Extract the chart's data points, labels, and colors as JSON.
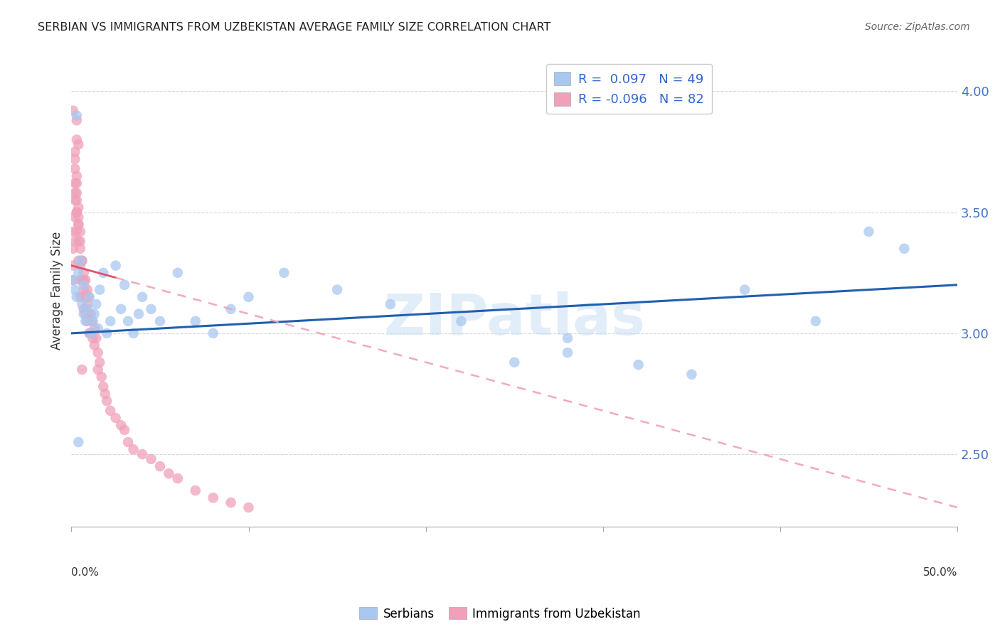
{
  "title": "SERBIAN VS IMMIGRANTS FROM UZBEKISTAN AVERAGE FAMILY SIZE CORRELATION CHART",
  "source": "Source: ZipAtlas.com",
  "ylabel": "Average Family Size",
  "bg_color": "#ffffff",
  "grid_color": "#c8c8c8",
  "legend_r1": "R =  0.097   N = 49",
  "legend_r2": "R = -0.096   N = 82",
  "watermark": "ZIPatlas",
  "blue_color": "#a8c8f0",
  "pink_color": "#f0a0b8",
  "line_blue": "#2060b0",
  "line_pink_solid": "#e05070",
  "line_pink_dash": "#f0a0b8",
  "yticks_right": [
    2.5,
    3.0,
    3.5,
    4.0
  ],
  "serbian_x": [
    0.001,
    0.002,
    0.003,
    0.004,
    0.005,
    0.006,
    0.007,
    0.007,
    0.008,
    0.009,
    0.01,
    0.011,
    0.012,
    0.013,
    0.014,
    0.015,
    0.016,
    0.018,
    0.02,
    0.022,
    0.025,
    0.028,
    0.03,
    0.032,
    0.035,
    0.038,
    0.04,
    0.045,
    0.05,
    0.06,
    0.07,
    0.08,
    0.09,
    0.1,
    0.12,
    0.15,
    0.18,
    0.22,
    0.25,
    0.28,
    0.32,
    0.35,
    0.38,
    0.42,
    0.45,
    0.47,
    0.003,
    0.004,
    0.28
  ],
  "serbian_y": [
    3.22,
    3.18,
    3.15,
    3.25,
    3.3,
    3.12,
    3.08,
    3.2,
    3.05,
    3.1,
    3.15,
    3.0,
    3.05,
    3.08,
    3.12,
    3.02,
    3.18,
    3.25,
    3.0,
    3.05,
    3.28,
    3.1,
    3.2,
    3.05,
    3.0,
    3.08,
    3.15,
    3.1,
    3.05,
    3.25,
    3.05,
    3.0,
    3.1,
    3.15,
    3.25,
    3.18,
    3.12,
    3.05,
    2.88,
    2.92,
    2.87,
    2.83,
    3.18,
    3.05,
    3.42,
    3.35,
    3.9,
    2.55,
    2.98
  ],
  "uzbek_x": [
    0.001,
    0.001,
    0.001,
    0.001,
    0.002,
    0.002,
    0.002,
    0.002,
    0.003,
    0.003,
    0.003,
    0.003,
    0.004,
    0.004,
    0.004,
    0.005,
    0.005,
    0.005,
    0.005,
    0.006,
    0.006,
    0.006,
    0.007,
    0.007,
    0.007,
    0.008,
    0.008,
    0.008,
    0.009,
    0.009,
    0.009,
    0.01,
    0.01,
    0.01,
    0.011,
    0.011,
    0.012,
    0.012,
    0.013,
    0.013,
    0.014,
    0.015,
    0.015,
    0.016,
    0.017,
    0.018,
    0.019,
    0.02,
    0.022,
    0.025,
    0.028,
    0.03,
    0.032,
    0.035,
    0.04,
    0.045,
    0.05,
    0.055,
    0.06,
    0.07,
    0.08,
    0.09,
    0.1,
    0.002,
    0.003,
    0.004,
    0.002,
    0.003,
    0.001,
    0.002,
    0.003,
    0.004,
    0.005,
    0.003,
    0.004,
    0.002,
    0.003,
    0.004,
    0.005,
    0.006,
    0.007,
    0.006
  ],
  "uzbek_y": [
    3.42,
    3.35,
    3.28,
    3.22,
    3.62,
    3.55,
    3.48,
    3.38,
    3.65,
    3.58,
    3.5,
    3.42,
    3.45,
    3.38,
    3.3,
    3.35,
    3.28,
    3.22,
    3.15,
    3.3,
    3.22,
    3.15,
    3.25,
    3.18,
    3.1,
    3.22,
    3.15,
    3.08,
    3.18,
    3.12,
    3.05,
    3.15,
    3.08,
    3.0,
    3.08,
    3.0,
    3.05,
    2.98,
    3.02,
    2.95,
    2.98,
    2.92,
    2.85,
    2.88,
    2.82,
    2.78,
    2.75,
    2.72,
    2.68,
    2.65,
    2.62,
    2.6,
    2.55,
    2.52,
    2.5,
    2.48,
    2.45,
    2.42,
    2.4,
    2.35,
    2.32,
    2.3,
    2.28,
    3.72,
    3.8,
    3.78,
    3.75,
    3.88,
    3.92,
    3.68,
    3.55,
    3.48,
    3.42,
    3.5,
    3.45,
    3.58,
    3.62,
    3.52,
    3.38,
    3.3,
    3.22,
    2.85
  ]
}
